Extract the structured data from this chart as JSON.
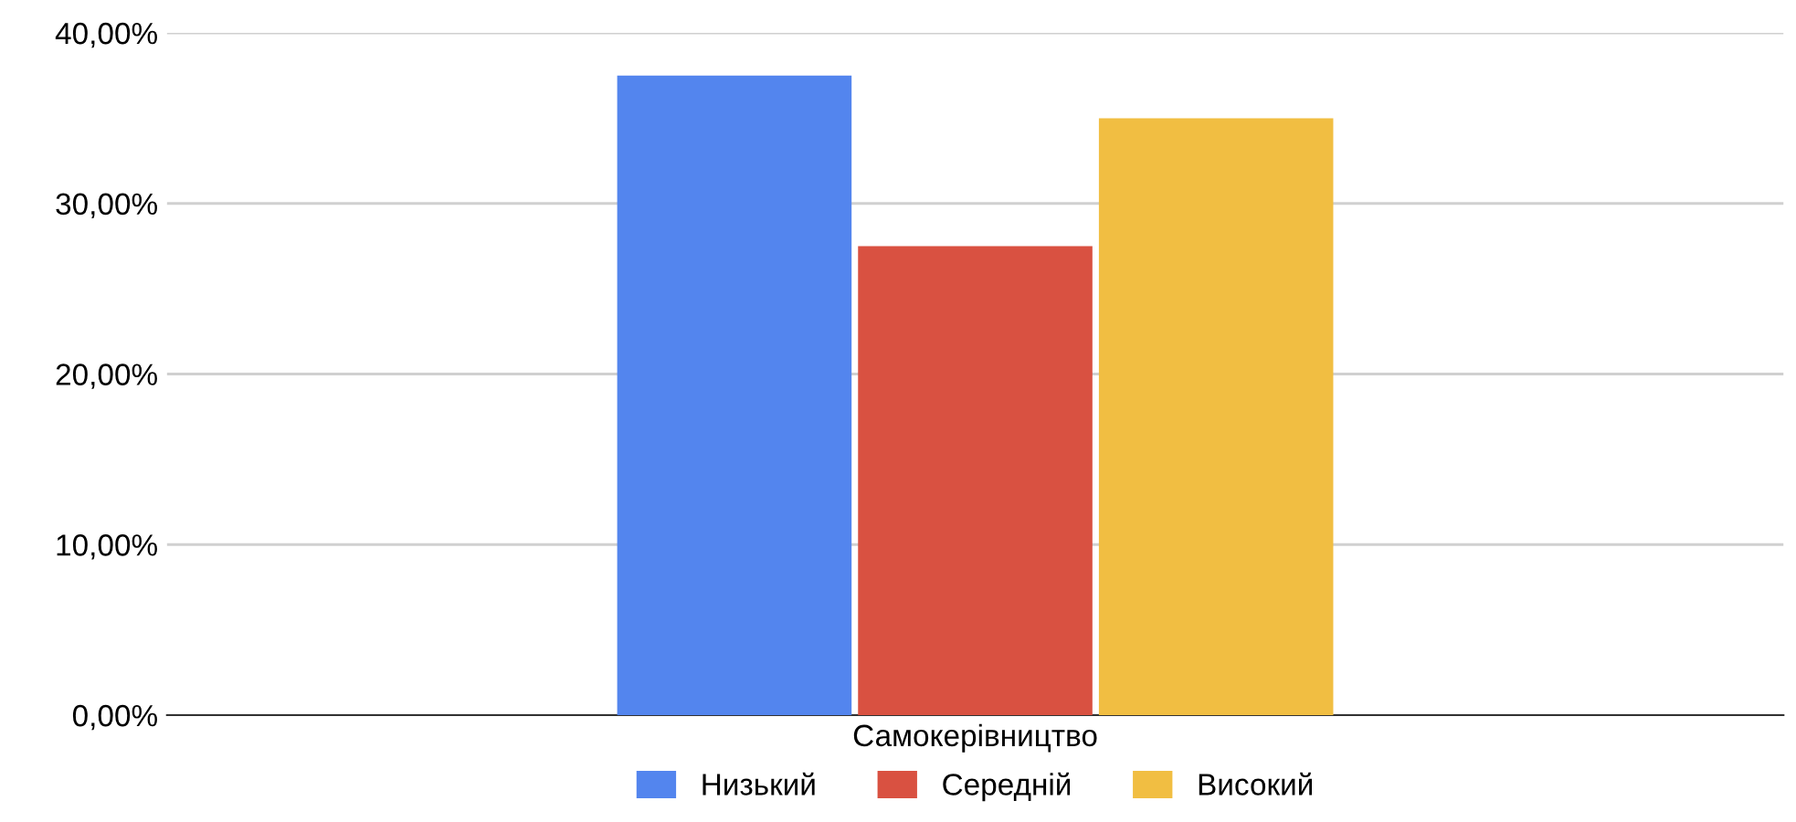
{
  "chart_data": {
    "type": "bar",
    "categories": [
      "Самокерівництво"
    ],
    "series": [
      {
        "name": "Низький",
        "color": "#5385ee",
        "values": [
          37.5
        ]
      },
      {
        "name": "Середній",
        "color": "#d95141",
        "values": [
          27.5
        ]
      },
      {
        "name": "Високий",
        "color": "#f1be42",
        "values": [
          35
        ]
      }
    ],
    "ylim": [
      0,
      40
    ],
    "yticks": [
      {
        "value": 0,
        "label": "0,00%"
      },
      {
        "value": 10,
        "label": "10,00%"
      },
      {
        "value": 20,
        "label": "20,00%"
      },
      {
        "value": 30,
        "label": "30,00%"
      },
      {
        "value": 40,
        "label": "40,00%"
      }
    ],
    "grid": "y",
    "legend": "bottom"
  }
}
